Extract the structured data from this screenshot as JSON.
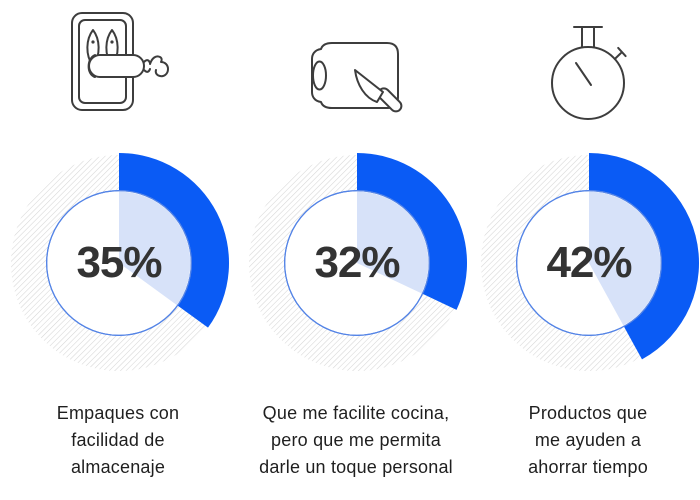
{
  "page": {
    "background": "#ffffff",
    "description": "Infographic with three donut charts, each with an outline icon above and a caption below"
  },
  "colors": {
    "accent_blue": "#0a5bf5",
    "wedge_blue": "#d7e2f9",
    "inner_ring_border": "#5484e6",
    "hatch_line": "#d5d5d5",
    "percent_text": "#333333",
    "label_text": "#1f1f1f",
    "icon_stroke": "#3d3d3d"
  },
  "chart_data": [
    {
      "type": "pie",
      "style": "donut",
      "value": 35,
      "max": 100,
      "label": "35%",
      "category": "Empaques con facilidad de almacenaje",
      "label_lines": [
        "Empaques con",
        "facilidad de",
        "almacenaje"
      ],
      "icon": "fish-package-icon",
      "start_angle_deg": 0,
      "direction": "clockwise",
      "remainder_style": "diagonal-hatch"
    },
    {
      "type": "pie",
      "style": "donut",
      "value": 32,
      "max": 100,
      "label": "32%",
      "category": "Que me facilite cocina, pero que me permita darle un toque personal",
      "label_lines": [
        "Que me facilite cocina,",
        "pero que me permita",
        "darle un toque personal"
      ],
      "icon": "cutting-board-knife-icon",
      "start_angle_deg": 0,
      "direction": "clockwise",
      "remainder_style": "diagonal-hatch"
    },
    {
      "type": "pie",
      "style": "donut",
      "value": 42,
      "max": 100,
      "label": "42%",
      "category": "Productos que me ayuden a ahorrar tiempo",
      "label_lines": [
        "Productos que",
        "me ayuden a",
        "ahorrar tiempo"
      ],
      "icon": "stopwatch-icon",
      "start_angle_deg": 0,
      "direction": "clockwise",
      "remainder_style": "diagonal-hatch"
    }
  ]
}
